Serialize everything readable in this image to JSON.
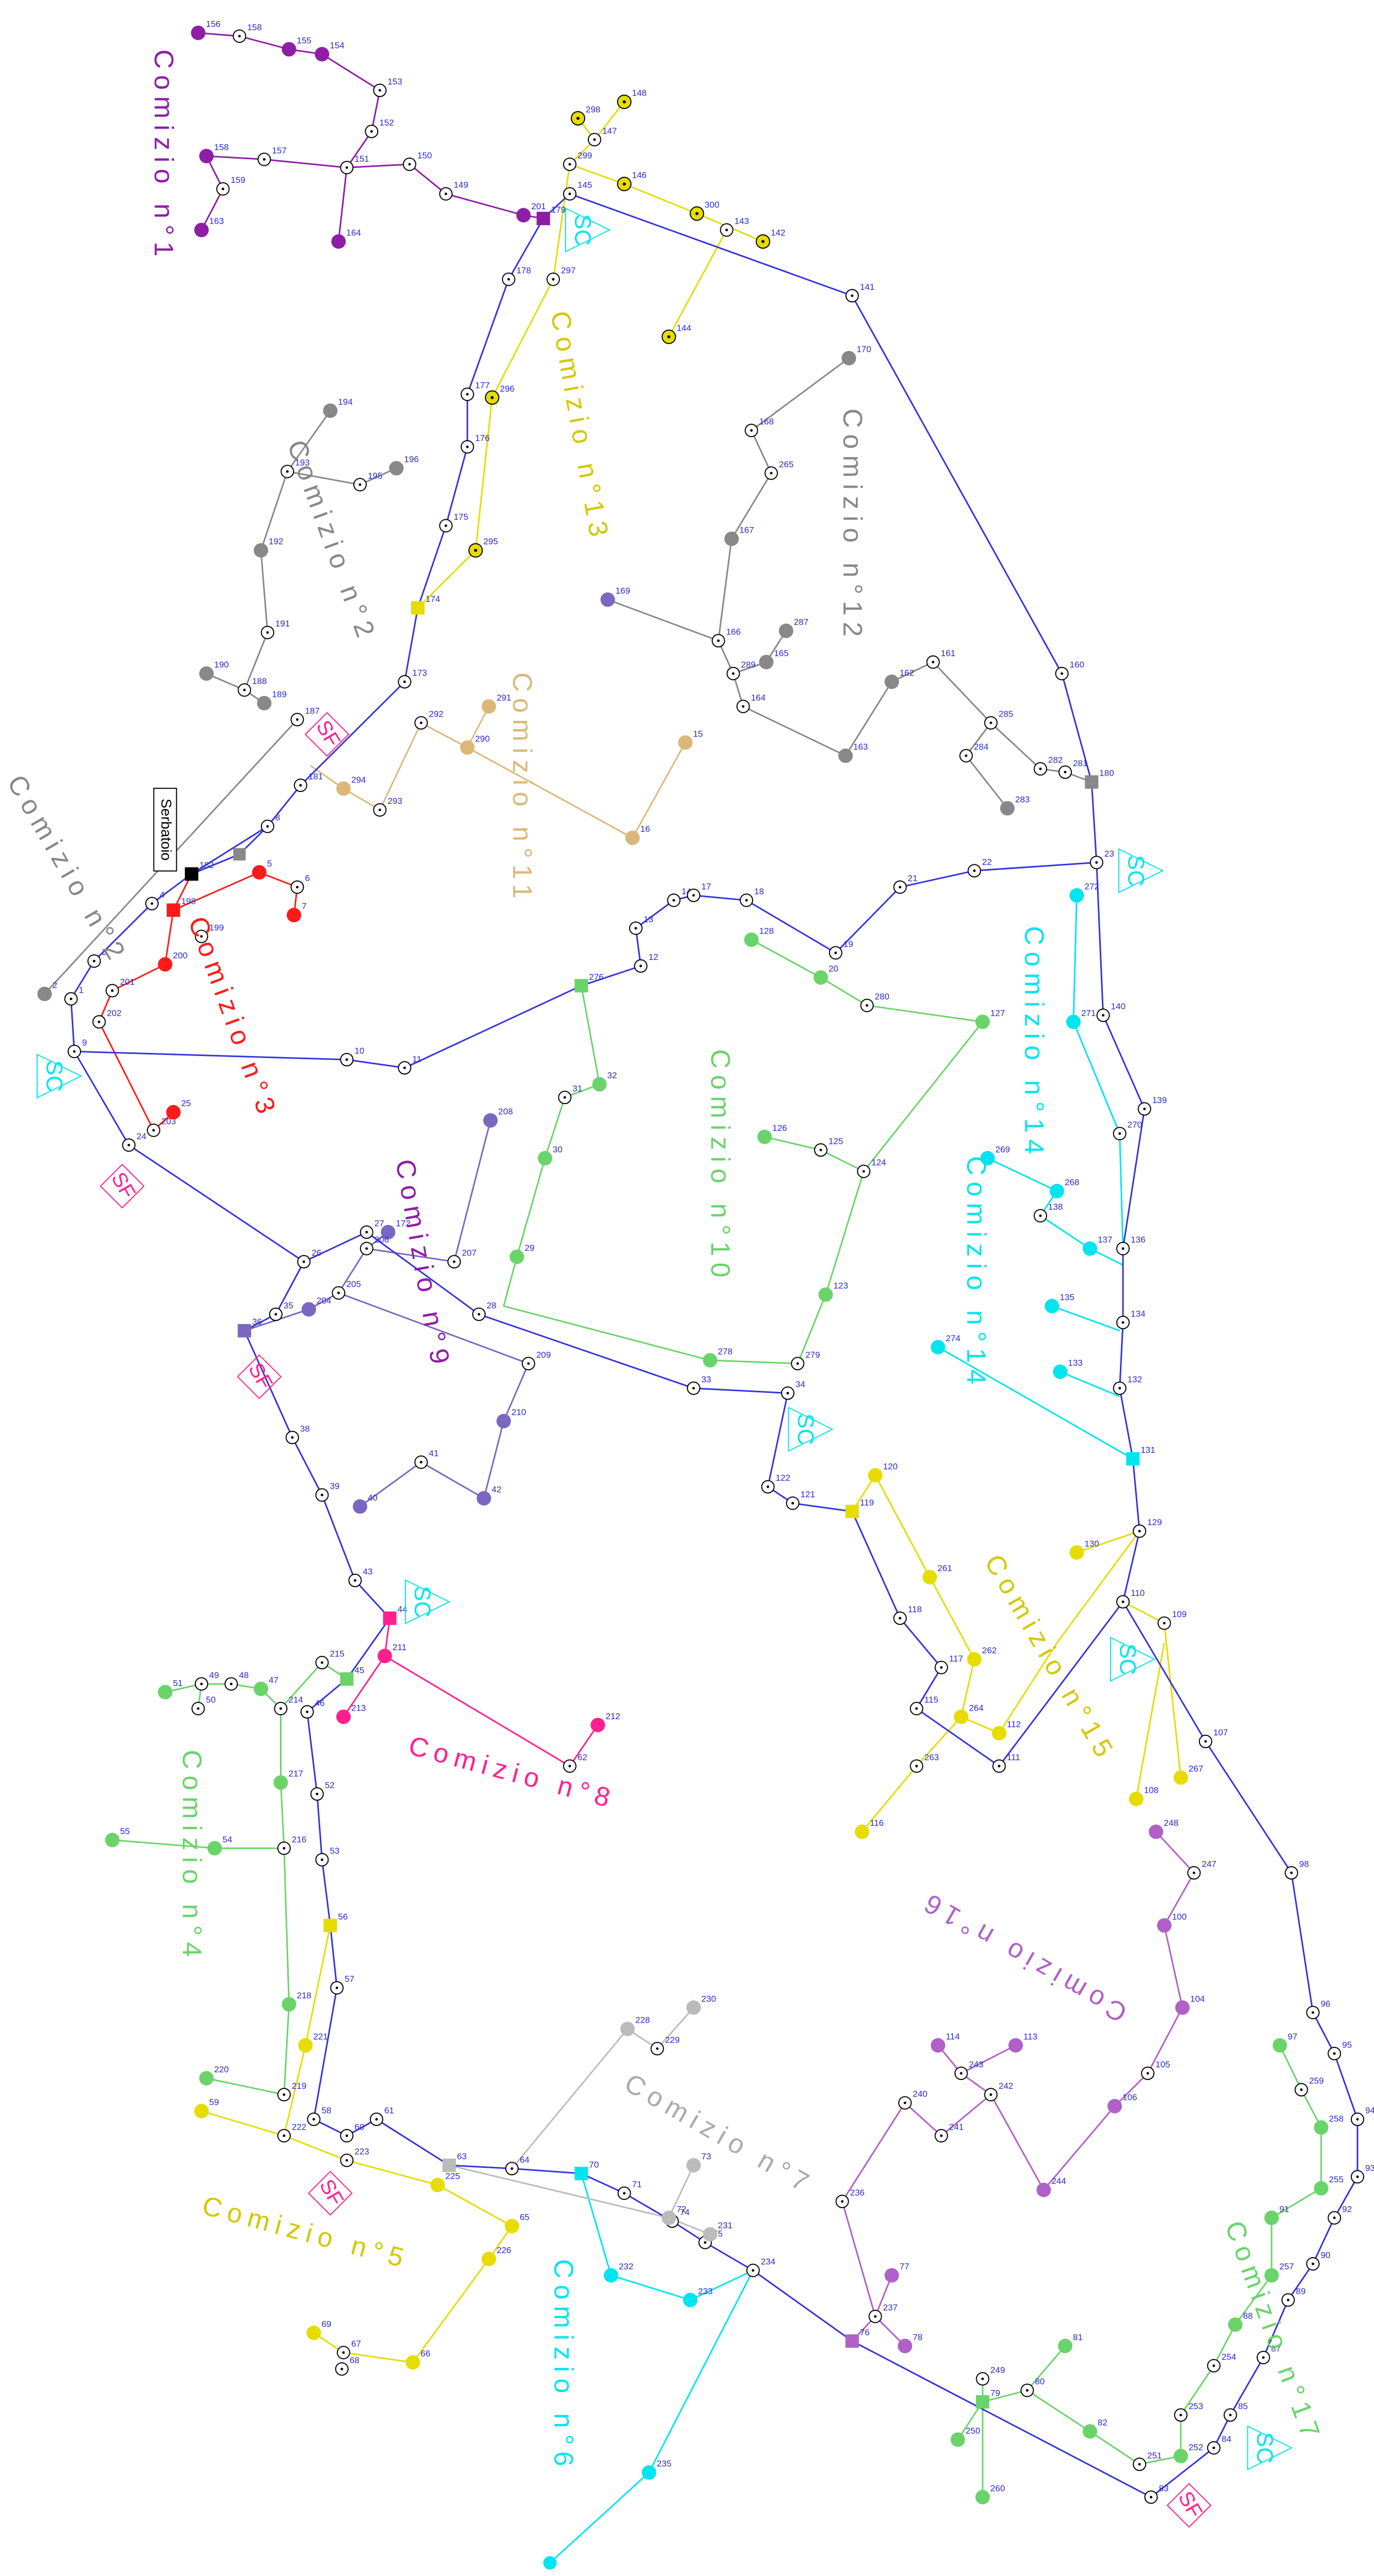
{
  "zones": [
    "Comizio n°1",
    "Comizio n°2",
    "Comizio n°2",
    "Comizio n°3",
    "Comizio n°4",
    "Comizio n°5",
    "Comizio n°6",
    "Comizio n°7",
    "Comizio n°8",
    "Comizio n°9",
    "Comizio n°10",
    "Comizio n°11",
    "Comizio n°12",
    "Comizio n°13",
    "Comizio n°14",
    "Comizio n°14",
    "Comizio n°15",
    "Comizio n°16",
    "Comizio n°17"
  ],
  "nodes": [
    [
      "156",
      "158",
      "155",
      "154",
      "153",
      "152",
      "151",
      "157",
      "158",
      "159",
      "163",
      "164",
      "150",
      "149",
      "201",
      "179"
    ],
    [
      "148",
      "298",
      "147",
      "299",
      "146",
      "300",
      "143",
      "142",
      "144",
      "297",
      "296",
      "295",
      "174"
    ],
    [
      "145",
      "141",
      "160",
      "180",
      "23",
      "140",
      "139",
      "136",
      "134",
      "132",
      "131",
      "129",
      "110",
      "107",
      "98",
      "96",
      "95",
      "94",
      "93",
      "92",
      "90",
      "89",
      "87",
      "85",
      "84",
      "83",
      "76",
      "234",
      "75",
      "74",
      "71",
      "70",
      "64",
      "63",
      "61",
      "60",
      "58",
      "57",
      "56",
      "53",
      "52",
      "46",
      "45",
      "44",
      "43",
      "39",
      "38",
      "36",
      "35",
      "26",
      "24",
      "9",
      "1",
      "3",
      "4",
      "182",
      "8",
      "181",
      "173",
      "175",
      "176",
      "177",
      "178"
    ],
    [
      "10",
      "11",
      "276",
      "12",
      "13",
      "14",
      "17",
      "18",
      "19",
      "21",
      "22"
    ],
    [
      "27",
      "28",
      "33",
      "34",
      "122",
      "121",
      "119",
      "118",
      "117",
      "115",
      "111"
    ],
    [
      "170",
      "168",
      "265",
      "167",
      "169",
      "166",
      "289",
      "165",
      "287",
      "164",
      "163",
      "162",
      "161",
      "285",
      "284",
      "283",
      "282",
      "281"
    ],
    [
      "194",
      "193",
      "195",
      "196",
      "192",
      "191",
      "188",
      "190",
      "189",
      "187",
      "2"
    ],
    [
      "15",
      "16",
      "290",
      "291",
      "292",
      "293",
      "294"
    ],
    [
      "5",
      "6",
      "7",
      "198",
      "199",
      "200",
      "201",
      "202",
      "203",
      "25"
    ],
    [
      "204",
      "205",
      "172",
      "206",
      "207",
      "208",
      "209",
      "210",
      "42",
      "41",
      "40"
    ],
    [
      "32",
      "31",
      "30",
      "29",
      "278",
      "279",
      "123",
      "124",
      "125",
      "126",
      "127",
      "280",
      "20",
      "128"
    ],
    [
      "272",
      "271",
      "270",
      "269",
      "268",
      "138",
      "137",
      "135",
      "133",
      "274"
    ],
    [
      "120",
      "261",
      "262",
      "264",
      "112",
      "263",
      "116",
      "130",
      "109",
      "267",
      "108"
    ],
    [
      "248",
      "247",
      "100",
      "104",
      "105",
      "106",
      "244",
      "242",
      "243",
      "114",
      "113",
      "241",
      "240",
      "236",
      "77",
      "78",
      "237"
    ],
    [
      "97",
      "259",
      "258",
      "255",
      "91",
      "257",
      "88",
      "254",
      "253",
      "252",
      "251",
      "82",
      "80",
      "81",
      "249",
      "79",
      "250",
      "260"
    ],
    [
      "232",
      "233",
      "235"
    ],
    [
      "228",
      "229",
      "230",
      "72",
      "73",
      "231"
    ],
    [
      "221",
      "222",
      "223",
      "225",
      "65",
      "226",
      "66",
      "67",
      "68",
      "69",
      "59"
    ],
    [
      "215",
      "214",
      "47",
      "48",
      "49",
      "50",
      "51",
      "217",
      "216",
      "54",
      "55",
      "218",
      "219",
      "220"
    ],
    [
      "211",
      "213",
      "62",
      "212"
    ]
  ],
  "sc_markers": [
    "SC",
    "SC",
    "SC",
    "SC",
    "SC",
    "SC",
    "SC"
  ],
  "sf_markers": [
    "SF",
    "SF",
    "SF",
    "SF",
    "SF"
  ],
  "tank": "Serbatoio"
}
